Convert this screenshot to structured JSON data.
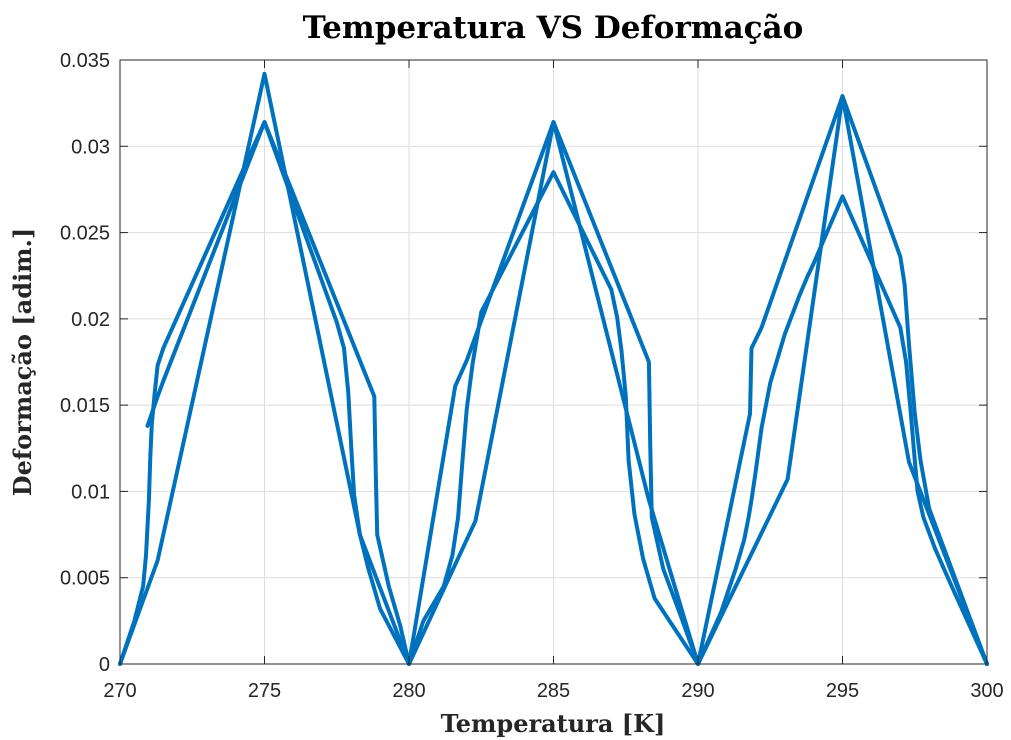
{
  "chart_data": {
    "type": "line",
    "title": "Temperatura VS Deformação",
    "xlabel": "Temperatura  [K]",
    "ylabel": "Deformação  [adim.]",
    "xlim": [
      270,
      300
    ],
    "ylim": [
      0,
      0.035
    ],
    "xticks": [
      270,
      275,
      280,
      285,
      290,
      295,
      300
    ],
    "xtick_labels": [
      "270",
      "275",
      "280",
      "285",
      "290",
      "295",
      "300"
    ],
    "yticks": [
      0,
      0.005,
      0.01,
      0.015,
      0.02,
      0.025,
      0.03,
      0.035
    ],
    "ytick_labels": [
      "0",
      "0.005",
      "0.01",
      "0.015",
      "0.02",
      "0.025",
      "0.03",
      "0.035"
    ],
    "grid": true,
    "color": "#0072bd",
    "series": [
      {
        "x": [
          270,
          270.5,
          270.8,
          270.9,
          271.0,
          271.05,
          271.1,
          271.2,
          271.3,
          271.5,
          275,
          277.5,
          277.75,
          277.9,
          278.0,
          278.1,
          278.3,
          278.6,
          279.0,
          280,
          280.5,
          281.2,
          281.5,
          281.7,
          281.85,
          282.0,
          282.2,
          282.5,
          285,
          287.0,
          287.2,
          287.35,
          287.5,
          287.6,
          287.8,
          288.1,
          288.5,
          290,
          290.8,
          291.3,
          291.6,
          291.75,
          291.85,
          292.0,
          292.2,
          292.5,
          293.0,
          293.5,
          293.8,
          294.0,
          295,
          297.0,
          297.2,
          297.35,
          297.5,
          297.6,
          297.8,
          298.2,
          298.7,
          300
        ],
        "y": [
          0,
          0.0025,
          0.0045,
          0.0063,
          0.0095,
          0.012,
          0.0139,
          0.0157,
          0.0173,
          0.0183,
          0.0314,
          0.0198,
          0.0183,
          0.0157,
          0.0126,
          0.0098,
          0.0075,
          0.0055,
          0.0032,
          0,
          0.0025,
          0.0045,
          0.0063,
          0.0085,
          0.0118,
          0.0148,
          0.0174,
          0.0204,
          0.0285,
          0.0217,
          0.0201,
          0.0182,
          0.0155,
          0.0118,
          0.0087,
          0.0061,
          0.0038,
          0,
          0.003,
          0.0055,
          0.0072,
          0.0085,
          0.0095,
          0.0112,
          0.0137,
          0.0163,
          0.0191,
          0.0213,
          0.0225,
          0.0232,
          0.0271,
          0.0195,
          0.0175,
          0.0148,
          0.0118,
          0.01,
          0.0085,
          0.0067,
          0.0048,
          0
        ]
      },
      {
        "x": [
          270,
          271.3,
          275,
          278.3,
          280,
          282.3,
          285,
          288.3,
          290,
          293.1,
          295,
          297.3,
          300
        ],
        "y": [
          0,
          0.006,
          0.0342,
          0.0075,
          0,
          0.0083,
          0.0314,
          0.0095,
          0,
          0.0107,
          0.0329,
          0.0117,
          0
        ]
      },
      {
        "x": [
          270.95,
          271.3,
          271.5,
          275,
          278.8,
          278.85,
          278.9,
          279.3,
          279.7,
          280,
          281.6,
          282.0,
          285,
          288.3,
          288.35,
          288.4,
          288.8,
          289.4,
          290,
          291.8,
          291.85,
          292.2,
          295,
          297.0,
          297.15,
          297.3,
          297.5,
          297.7,
          298.0,
          299,
          300
        ],
        "y": [
          0.0138,
          0.0155,
          0.0164,
          0.0314,
          0.0155,
          0.011,
          0.0075,
          0.0045,
          0.0022,
          0,
          0.0161,
          0.0176,
          0.0314,
          0.0175,
          0.0125,
          0.0085,
          0.0055,
          0.0028,
          0,
          0.0145,
          0.0183,
          0.0195,
          0.0329,
          0.0236,
          0.022,
          0.0185,
          0.0145,
          0.0118,
          0.009,
          0.0045,
          0
        ]
      }
    ]
  }
}
